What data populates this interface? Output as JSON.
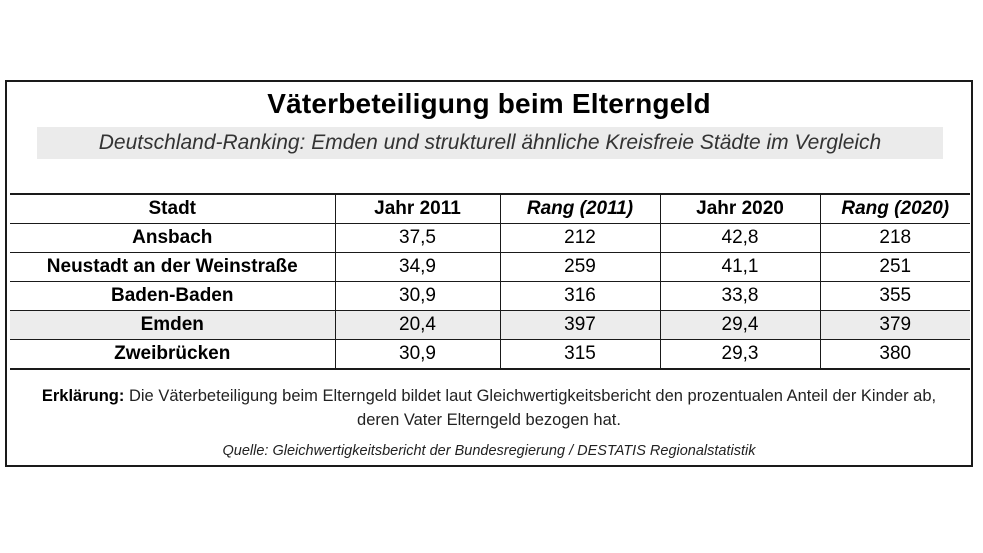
{
  "title": "Väterbeteiligung beim Elterngeld",
  "subtitle": "Deutschland-Ranking: Emden und strukturell ähnliche Kreisfreie Städte im Vergleich",
  "table": {
    "headers": [
      "Stadt",
      "Jahr 2011",
      "Rang (2011)",
      "Jahr 2020",
      "Rang (2020)"
    ],
    "rows": [
      [
        "Ansbach",
        "37,5",
        "212",
        "42,8",
        "218"
      ],
      [
        "Neustadt an der Weinstraße",
        "34,9",
        "259",
        "41,1",
        "251"
      ],
      [
        "Baden-Baden",
        "30,9",
        "316",
        "33,8",
        "355"
      ],
      [
        "Emden",
        "20,4",
        "397",
        "29,4",
        "379"
      ],
      [
        "Zweibrücken",
        "30,9",
        "315",
        "29,3",
        "380"
      ]
    ]
  },
  "explanation": {
    "label": "Erklärung:",
    "text": " Die Väterbeteiligung beim Elterngeld bildet laut Gleichwertigkeitsbericht den prozentualen Anteil der Kinder ab, deren Vater Elterngeld bezogen hat."
  },
  "source": "Quelle: Gleichwertigkeitsbericht der Bundesregierung / DESTATIS Regionalstatistik",
  "colors": {
    "border": "#1a1a1a",
    "subtitle_band": "#ebebeb",
    "highlight_row": "#ececec"
  }
}
